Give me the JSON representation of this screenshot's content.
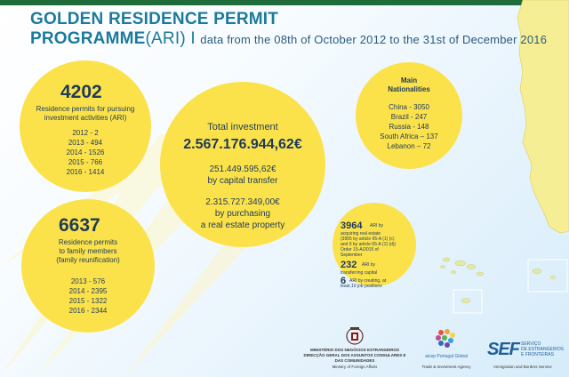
{
  "header": {
    "title_line1": "GOLDEN RESIDENCE PERMIT",
    "title_line2_main": "PROGRAMME",
    "title_line2_paren": "(ARI)",
    "title_line2_sep": " I ",
    "title_line2_sub": "data from the 08th of October 2012 to the 31st of December 2016"
  },
  "investment_permits": {
    "number": "4202",
    "label_line1": "Residence permits for pursuing",
    "label_line2": "investment activities (ARI)",
    "years": [
      "2012 - 2",
      "2013 - 494",
      "2014 - 1526",
      "2015 - 766",
      "2016 - 1414"
    ]
  },
  "family_permits": {
    "number": "6637",
    "label_line1": "Residence permits",
    "label_line2": "to family members",
    "label_line3": "(family reunification)",
    "years": [
      "2013 - 576",
      "2014 - 2395",
      "2015 - 1322",
      "2016 - 2344"
    ]
  },
  "total_investment": {
    "label": "Total investment",
    "amount": "2.567.176.944,62€",
    "transfer_amount": "251.449.595,62€",
    "transfer_label": "by capital transfer",
    "property_amount": "2.315.727.349,00€",
    "property_label_line1": "by purchasing",
    "property_label_line2": "a real estate property"
  },
  "nationalities": {
    "title_line1": "Main",
    "title_line2": "Nationalities",
    "items": [
      "China - 3050",
      "Brazil  -  247",
      "Russia - 148",
      "South Africa – 137",
      "Lebanon – 72"
    ]
  },
  "ari_breakdown": {
    "real_estate_number": "3964",
    "real_estate_text": "ARI by",
    "real_estate_line2": "acquiring real estate",
    "real_estate_line3": "(3955 by article 65-A (1) (c)",
    "real_estate_line4": "and 9 by article 65-A (1) (d))",
    "real_estate_line5": "Order 15-A/2015 of",
    "real_estate_line6": "September",
    "capital_number": "232",
    "capital_text": "ARI by",
    "capital_line2": "transferring capital",
    "jobs_number": "6",
    "jobs_text": "ARI by creating, at",
    "jobs_line2": "least,10 job positions"
  },
  "footer": {
    "ministry_line1": "MINISTÉRIO DOS NEGÓCIOS ESTRANGEIROS",
    "ministry_line2": "DIRECÇÃO GERAL DOS ASSUNTOS CONSULARES E",
    "ministry_line3": "DAS COMUNIDADES",
    "ministry_caption": "Ministry of Foreign Affairs",
    "aicep_name": "aicep Portugal Global",
    "aicep_caption": "Trade & Investment Agency",
    "sef_letters": "SEF",
    "sef_line1": "SERVIÇO",
    "sef_line2": "DE ESTRANGEIROS",
    "sef_line3": "E FRONTEIRAS",
    "sef_caption": "Immigration and Borders Service"
  },
  "colors": {
    "circle_yellow": "#fbe24b",
    "title_teal": "#1c7a9c",
    "text_navy": "#1f3a5a",
    "header_strip": "#1f6b3a"
  }
}
